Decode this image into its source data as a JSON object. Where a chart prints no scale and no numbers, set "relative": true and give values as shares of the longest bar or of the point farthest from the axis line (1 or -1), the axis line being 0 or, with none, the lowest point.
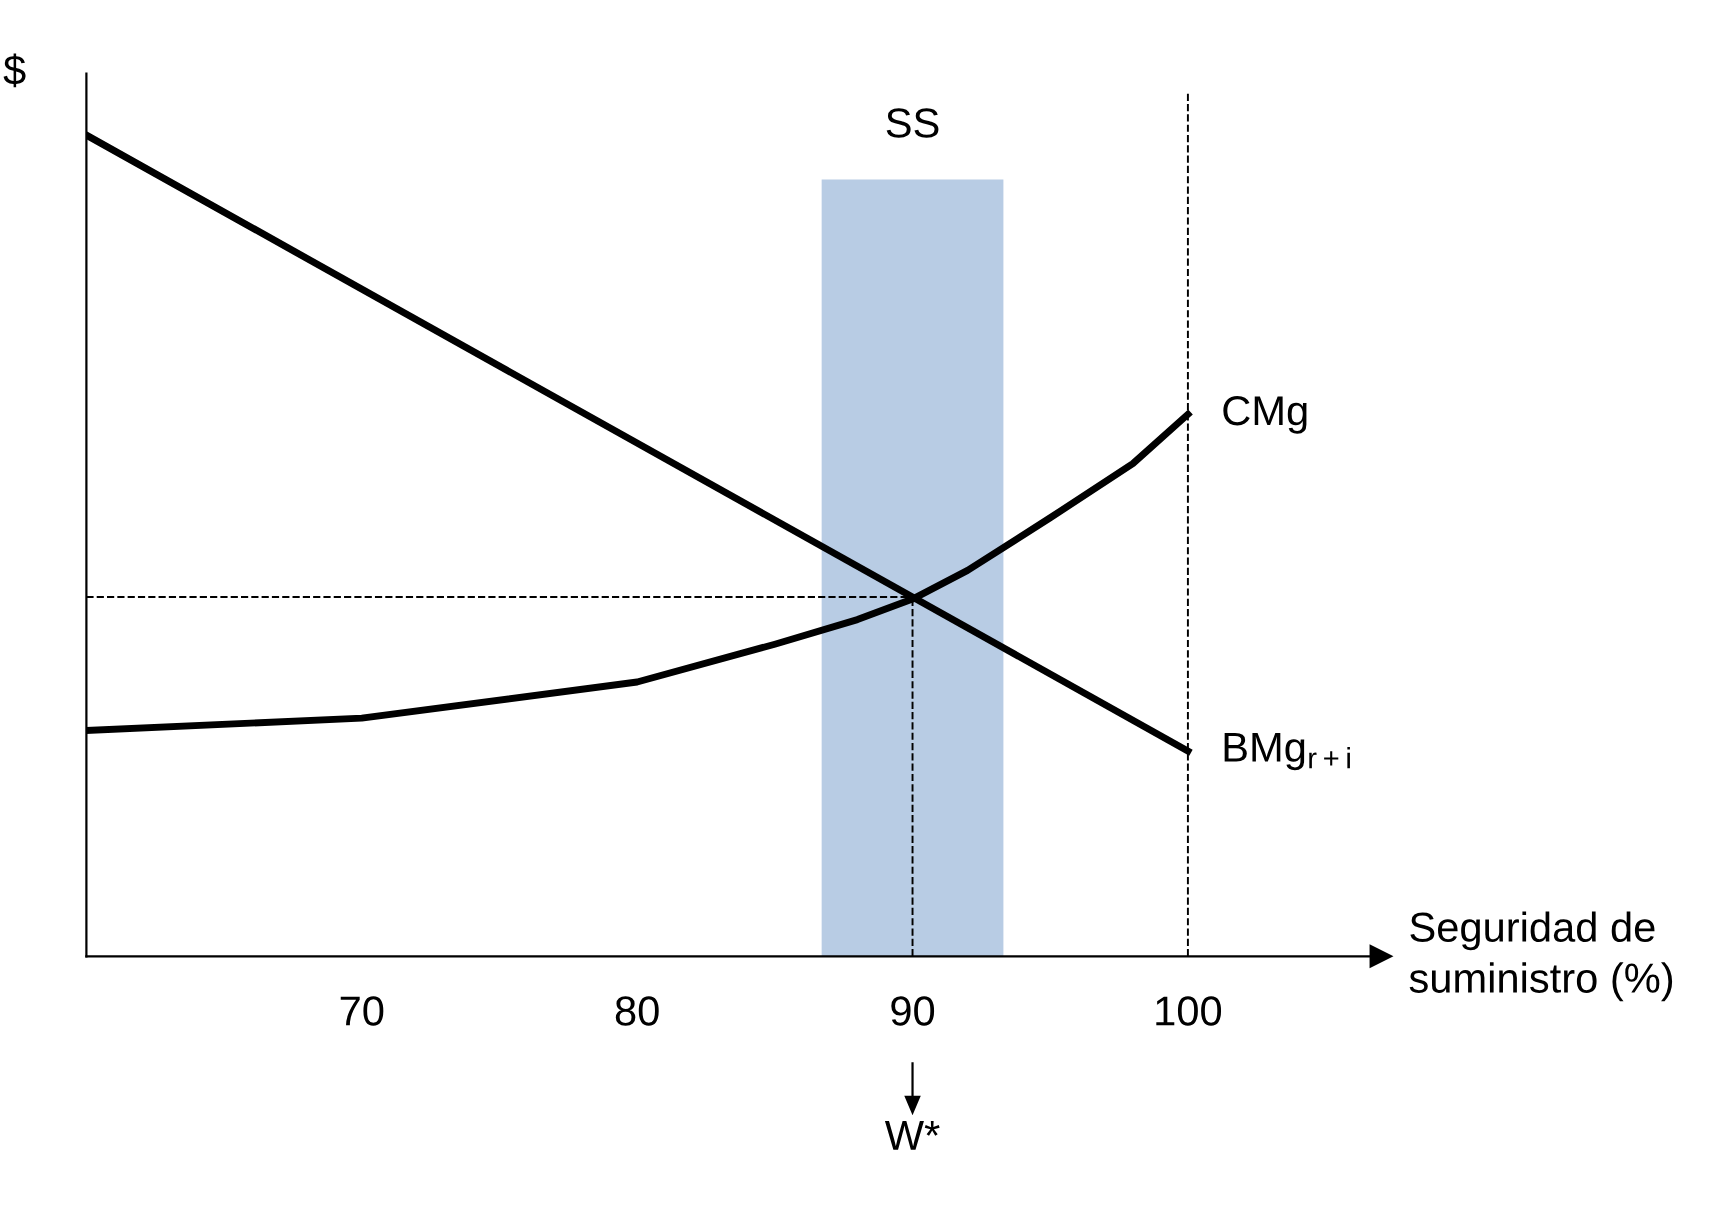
{
  "chart_data": {
    "type": "line",
    "relative": true,
    "ylabel": "$",
    "xlabel": "Seguridad de\nsuministro (%)",
    "xlim": [
      60,
      107
    ],
    "xticks": [
      70,
      80,
      90,
      100
    ],
    "series": [
      {
        "name": "BMg$_{r+i}$",
        "color": "#000000",
        "x": [
          60,
          100
        ],
        "values": [
          1,
          0.25
        ]
      },
      {
        "name": "CMg",
        "color": "#000000",
        "x": [
          60,
          70,
          80,
          85,
          88,
          90,
          92,
          95,
          98,
          100
        ],
        "values": [
          0.275,
          0.29,
          0.334,
          0.38,
          0.41,
          0.435,
          0.47,
          0.534,
          0.6,
          0.66
        ]
      }
    ],
    "bands": [
      {
        "axis": "x",
        "from": 86.7,
        "to": 93.3,
        "label": "SS",
        "color": "#b8cce4"
      }
    ],
    "ref_lines": [
      {
        "axis": "x",
        "value": 100,
        "line_style": "dashed",
        "color": "#000000"
      },
      {
        "axis": "x",
        "value": 90,
        "line_style": "dashed",
        "color": "#000000"
      },
      {
        "axis": "y",
        "value": 0.4375,
        "line_style": "dashed",
        "color": "#000000"
      }
    ],
    "annotations": [
      "W*"
    ],
    "line_style": "solid",
    "marker": "none",
    "grid": false,
    "legend": false
  }
}
